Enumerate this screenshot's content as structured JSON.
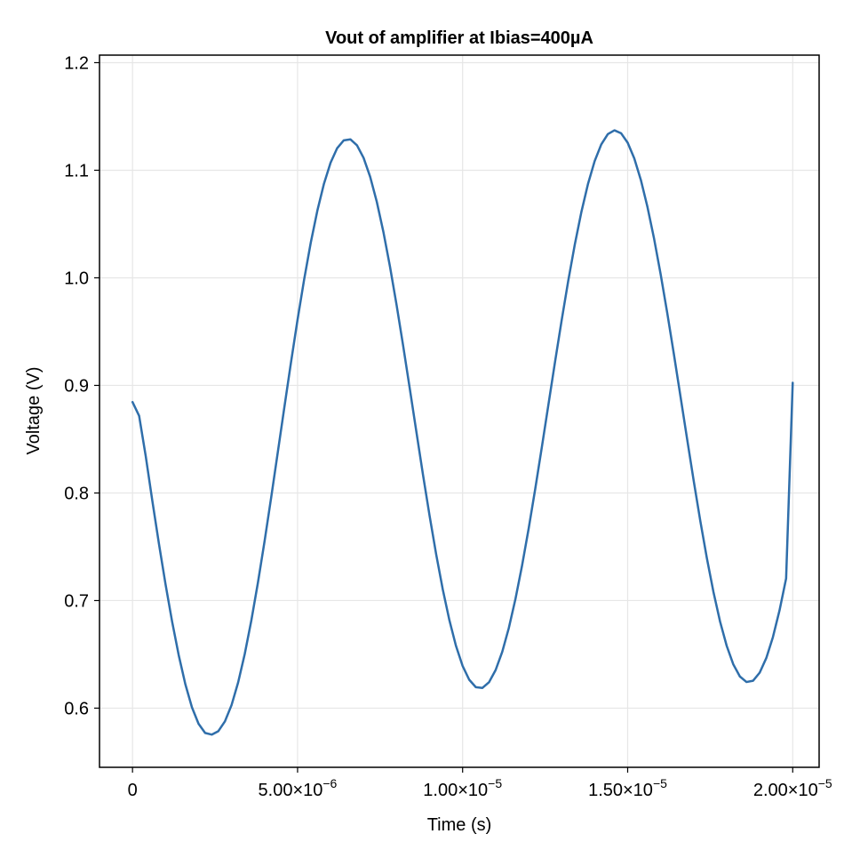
{
  "chart_data": {
    "type": "line",
    "title": "Vout of amplifier at Ibias=400µA",
    "xlabel": "Time (s)",
    "ylabel": "Voltage (V)",
    "xlim": [
      -1e-06,
      2.08e-05
    ],
    "ylim": [
      0.545,
      1.207
    ],
    "grid": true,
    "x_ticks": [
      {
        "value": 0,
        "label": "0",
        "exp": ""
      },
      {
        "value": 5e-06,
        "label": "5.00×10",
        "exp": "−6"
      },
      {
        "value": 1e-05,
        "label": "1.00×10",
        "exp": "−5"
      },
      {
        "value": 1.5e-05,
        "label": "1.50×10",
        "exp": "−5"
      },
      {
        "value": 2e-05,
        "label": "2.00×10",
        "exp": "−5"
      }
    ],
    "y_ticks": [
      {
        "value": 0.6,
        "label": "0.6"
      },
      {
        "value": 0.7,
        "label": "0.7"
      },
      {
        "value": 0.8,
        "label": "0.8"
      },
      {
        "value": 0.9,
        "label": "0.9"
      },
      {
        "value": 1.0,
        "label": "1.0"
      },
      {
        "value": 1.1,
        "label": "1.1"
      },
      {
        "value": 1.2,
        "label": "1.2"
      }
    ],
    "series": [
      {
        "color": "#2f6eaa",
        "x": [
          0,
          2e-07,
          4e-07,
          6e-07,
          8e-07,
          1e-06,
          1.2e-06,
          1.4e-06,
          1.6e-06,
          1.8e-06,
          2e-06,
          2.2e-06,
          2.4e-06,
          2.6e-06,
          2.8e-06,
          3e-06,
          3.2e-06,
          3.4e-06,
          3.6e-06,
          3.8e-06,
          4e-06,
          4.2e-06,
          4.4e-06,
          4.6e-06,
          4.8e-06,
          5e-06,
          5.2e-06,
          5.4e-06,
          5.6e-06,
          5.8e-06,
          6e-06,
          6.2e-06,
          6.4e-06,
          6.6e-06,
          6.8e-06,
          7e-06,
          7.2e-06,
          7.4e-06,
          7.6e-06,
          7.8e-06,
          8e-06,
          8.2e-06,
          8.4e-06,
          8.6e-06,
          8.8e-06,
          9e-06,
          9.2e-06,
          9.4e-06,
          9.6e-06,
          9.8e-06,
          1e-05,
          1.02e-05,
          1.04e-05,
          1.06e-05,
          1.08e-05,
          1.1e-05,
          1.12e-05,
          1.14e-05,
          1.16e-05,
          1.18e-05,
          1.2e-05,
          1.22e-05,
          1.24e-05,
          1.26e-05,
          1.28e-05,
          1.3e-05,
          1.32e-05,
          1.34e-05,
          1.36e-05,
          1.38e-05,
          1.4e-05,
          1.42e-05,
          1.44e-05,
          1.46e-05,
          1.48e-05,
          1.5e-05,
          1.52e-05,
          1.54e-05,
          1.56e-05,
          1.58e-05,
          1.6e-05,
          1.62e-05,
          1.64e-05,
          1.66e-05,
          1.68e-05,
          1.7e-05,
          1.72e-05,
          1.74e-05,
          1.76e-05,
          1.78e-05,
          1.8e-05,
          1.82e-05,
          1.84e-05,
          1.86e-05,
          1.88e-05,
          1.9e-05,
          1.92e-05,
          1.94e-05,
          1.96e-05,
          1.98e-05,
          2e-05
        ],
        "y": [
          0.8845,
          0.8717,
          0.8343,
          0.7928,
          0.7529,
          0.7152,
          0.6804,
          0.6492,
          0.6223,
          0.6008,
          0.5855,
          0.5769,
          0.5754,
          0.5786,
          0.5877,
          0.6028,
          0.6239,
          0.6504,
          0.6816,
          0.7168,
          0.7551,
          0.7957,
          0.8376,
          0.8797,
          0.9212,
          0.9612,
          0.9986,
          1.0327,
          1.0625,
          1.0875,
          1.107,
          1.1205,
          1.1278,
          1.1287,
          1.1232,
          1.1115,
          1.0938,
          1.0707,
          1.0427,
          1.0104,
          0.9747,
          0.9366,
          0.8969,
          0.8567,
          0.8169,
          0.7787,
          0.7428,
          0.7102,
          0.6817,
          0.6578,
          0.6392,
          0.6264,
          0.6195,
          0.6188,
          0.6241,
          0.6354,
          0.6523,
          0.6745,
          0.7014,
          0.7324,
          0.7668,
          0.8038,
          0.8426,
          0.8823,
          0.9219,
          0.9605,
          0.9972,
          1.0312,
          1.0615,
          1.0875,
          1.1085,
          1.124,
          1.1336,
          1.1371,
          1.1344,
          1.1256,
          1.111,
          1.0909,
          1.0658,
          1.0364,
          1.0032,
          0.9672,
          0.9291,
          0.8898,
          0.8503,
          0.8114,
          0.7741,
          0.7393,
          0.7078,
          0.6804,
          0.6579,
          0.6407,
          0.6294,
          0.6243,
          0.6255,
          0.633,
          0.6466,
          0.666,
          0.6908,
          0.7205,
          0.9025
        ]
      }
    ]
  }
}
